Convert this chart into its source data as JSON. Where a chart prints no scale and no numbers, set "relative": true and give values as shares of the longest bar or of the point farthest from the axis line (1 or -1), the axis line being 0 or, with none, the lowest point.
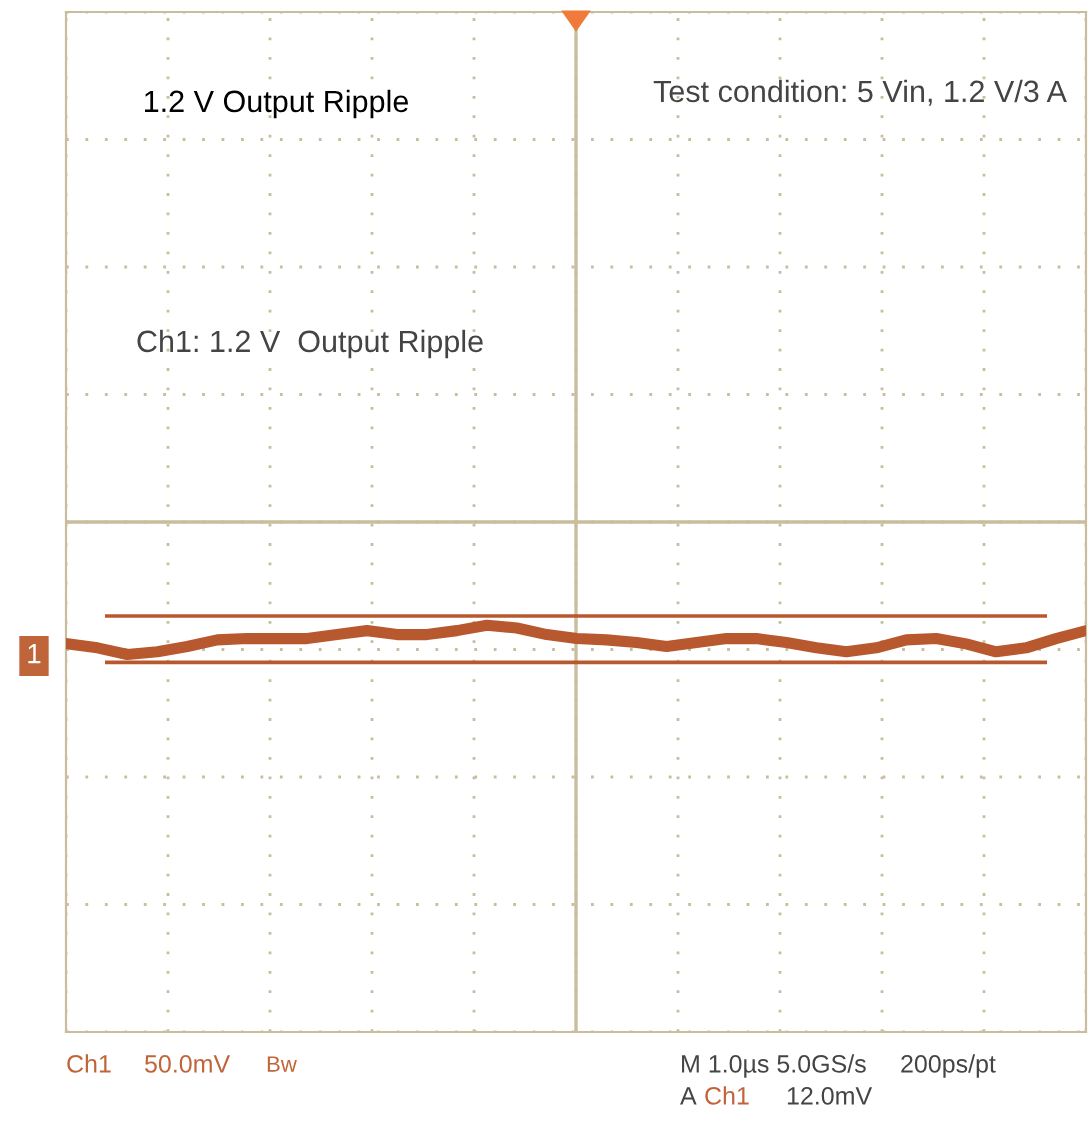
{
  "chart_data": {
    "type": "line",
    "title": "1.2 V Output Ripple",
    "relative": true,
    "grid": true,
    "line_style": "solid",
    "categories": [
      null,
      null,
      null,
      null,
      null,
      null,
      null,
      null,
      null,
      null,
      null,
      null,
      null,
      null,
      null,
      null,
      null,
      null,
      null,
      null,
      null,
      null,
      null,
      null,
      null,
      null,
      null,
      null,
      null,
      null,
      null,
      null,
      null,
      null,
      null
    ],
    "series": [
      {
        "color": "#b8582e",
        "values": [
          -0.92,
          -0.95,
          -1,
          -0.98,
          -0.94,
          -0.89,
          -0.88,
          -0.88,
          -0.88,
          -0.85,
          -0.82,
          -0.85,
          -0.85,
          -0.82,
          -0.78,
          -0.8,
          -0.85,
          -0.88,
          -0.89,
          -0.91,
          -0.94,
          -0.91,
          -0.88,
          -0.88,
          -0.91,
          -0.95,
          -0.98,
          -0.95,
          -0.89,
          -0.88,
          -0.92,
          -0.98,
          -0.95,
          -0.88,
          -0.82
        ]
      }
    ],
    "ref_lines": [
      {
        "axis": "y",
        "value": -0.71,
        "color": "#b8582e"
      },
      {
        "axis": "y",
        "value": -1.06,
        "color": "#b8582e"
      }
    ],
    "annotations": [
      "Test condition: 5 Vin, 1.2 V/3 A",
      "Ch1: 1.2 V  Output Ripple",
      "1",
      "Ch1",
      "50.0mV",
      "Bw",
      "M 1.0µs 5.0GS/s",
      "200ps/pt",
      "A",
      "Ch1",
      "12.0mV"
    ]
  }
}
